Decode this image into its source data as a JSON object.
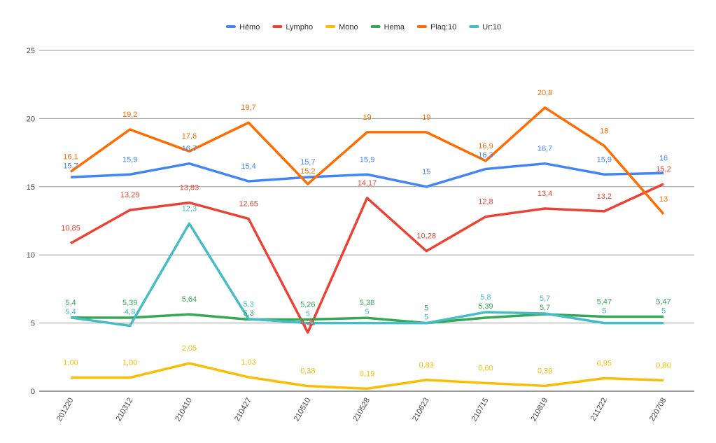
{
  "chart_data": {
    "type": "line",
    "title": "",
    "xlabel": "",
    "ylabel": "",
    "ylim": [
      0,
      25
    ],
    "yticks": [
      0,
      5,
      10,
      15,
      20,
      25
    ],
    "grid": true,
    "legend_position": "top",
    "categories": [
      "201220",
      "210312",
      "210410",
      "210427",
      "210510",
      "210528",
      "210623",
      "210715",
      "210819",
      "211222",
      "220708"
    ],
    "series": [
      {
        "name": "Hémo",
        "color": "#4285f4",
        "values": [
          15.7,
          15.9,
          16.7,
          15.4,
          15.7,
          15.9,
          15,
          16.3,
          16.7,
          15.9,
          16
        ],
        "labels": [
          "15,7",
          "15,9",
          "16,7",
          "15,4",
          "15,7",
          "15,9",
          "15",
          "16,3",
          "16,7",
          "15,9",
          "16"
        ]
      },
      {
        "name": "Lympho",
        "color": "#ea4335",
        "values": [
          10.85,
          13.29,
          13.83,
          12.65,
          4.31,
          14.17,
          10.28,
          12.8,
          13.4,
          13.2,
          15.2
        ],
        "labels": [
          "10,85",
          "13,29",
          "13,83",
          "12,65",
          "4,31",
          "14,17",
          "10,28",
          "12,8",
          "13,4",
          "13,2",
          "15,2"
        ]
      },
      {
        "name": "Mono",
        "color": "#fbbc04",
        "values": [
          1.0,
          1.0,
          2.05,
          1.03,
          0.38,
          0.19,
          0.83,
          0.6,
          0.39,
          0.95,
          0.8
        ],
        "labels": [
          "1,00",
          "1,00",
          "2,05",
          "1,03",
          "0,38",
          "0,19",
          "0,83",
          "0,60",
          "0,39",
          "0,95",
          "0,80"
        ]
      },
      {
        "name": "Hema",
        "color": "#34a853",
        "values": [
          5.4,
          5.39,
          5.64,
          5.26,
          5.26,
          5.38,
          5,
          5.39,
          5.65,
          5.47,
          5.47
        ],
        "labels": [
          "5,4",
          "5,39",
          "5,64",
          "5,3",
          "5,26",
          "5,38",
          "5",
          "5,39",
          "5,7",
          "5,47",
          "5,47"
        ]
      },
      {
        "name": "Plaq:10",
        "color": "#ff6d01",
        "values": [
          16.1,
          19.2,
          17.6,
          19.7,
          15.2,
          19,
          19,
          16.9,
          20.8,
          18,
          13
        ],
        "labels": [
          "16,1",
          "19,2",
          "17,6",
          "19,7",
          "15,2",
          "19",
          "19",
          "16,9",
          "20,8",
          "18",
          "13"
        ]
      },
      {
        "name": "Ur:10",
        "color": "#46bdc6",
        "values": [
          5.4,
          4.8,
          12.3,
          5.3,
          5,
          5,
          5,
          5.8,
          5.7,
          5,
          5
        ],
        "labels": [
          "5,4",
          "4,8",
          "12,3",
          "5,3",
          "5",
          "5",
          "5",
          "5,8",
          "5,7",
          "5",
          "5"
        ]
      }
    ]
  }
}
